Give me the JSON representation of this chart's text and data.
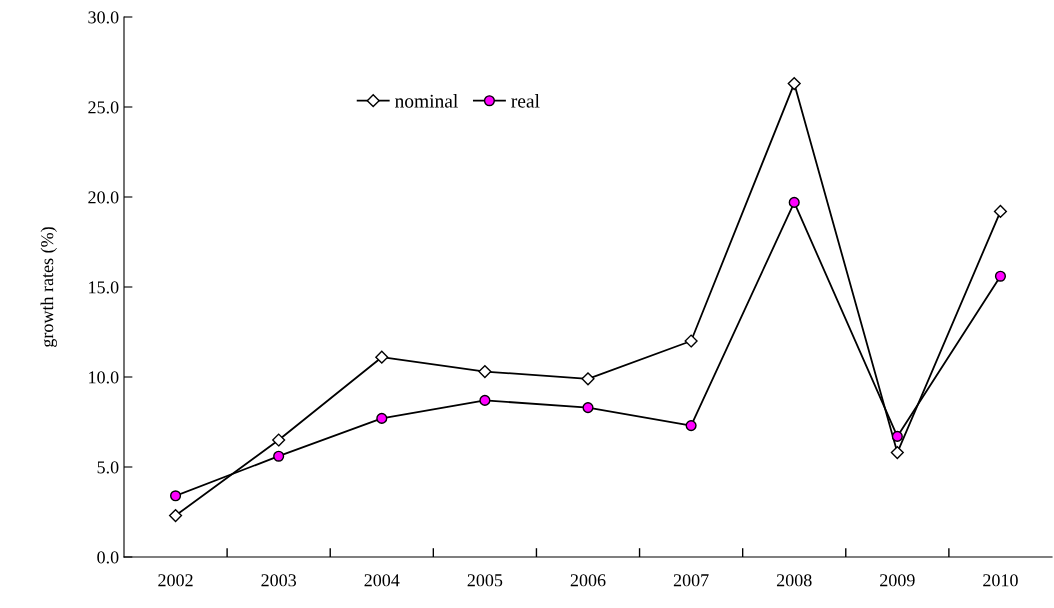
{
  "chart_data": {
    "type": "line",
    "ylabel": "growth rates (%)",
    "categories": [
      "2002",
      "2003",
      "2004",
      "2005",
      "2006",
      "2007",
      "2008",
      "2009",
      "2010"
    ],
    "series": [
      {
        "name": "nominal",
        "color": "#ffffff",
        "marker": "diamond",
        "values": [
          2.3,
          6.5,
          11.1,
          10.3,
          9.9,
          12.0,
          26.3,
          5.8,
          19.2
        ]
      },
      {
        "name": "real",
        "color": "#ff00ff",
        "marker": "circle",
        "values": [
          3.4,
          5.6,
          7.7,
          8.7,
          8.3,
          7.3,
          19.7,
          6.7,
          15.6
        ]
      }
    ],
    "ylim": [
      0,
      30
    ],
    "yticks": [
      {
        "value": 0,
        "label": "0.0"
      },
      {
        "value": 5,
        "label": "5.0"
      },
      {
        "value": 10,
        "label": "10.0"
      },
      {
        "value": 15,
        "label": "15.0"
      },
      {
        "value": 20,
        "label": "20.0"
      },
      {
        "value": 25,
        "label": "25.0"
      },
      {
        "value": 30,
        "label": "30.0"
      }
    ],
    "grid": false,
    "legend": "top",
    "line_style": "solid"
  }
}
